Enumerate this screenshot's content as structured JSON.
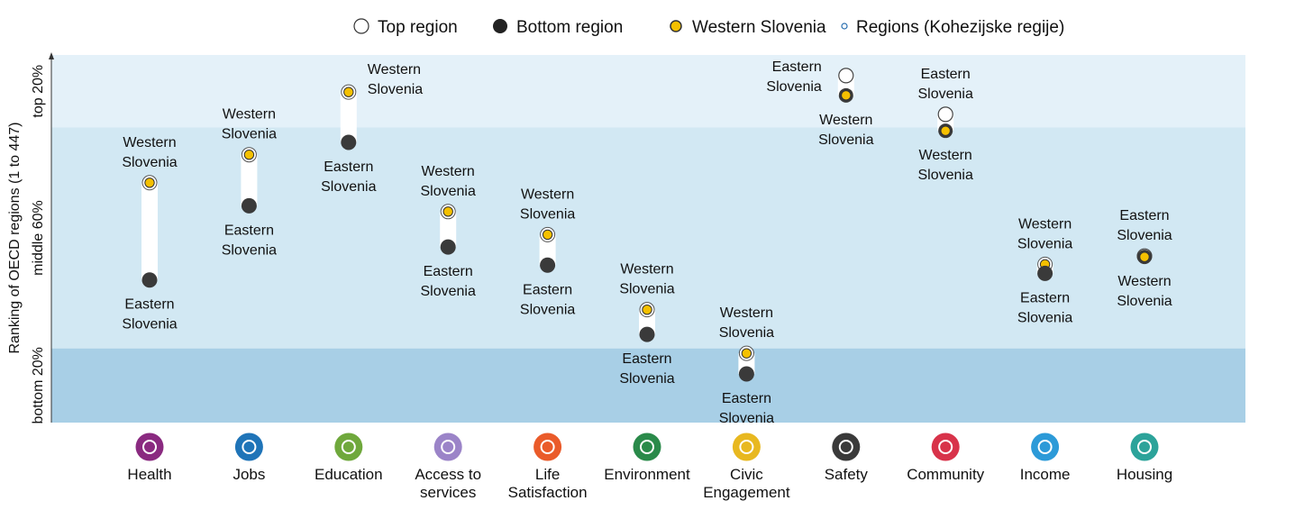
{
  "chart_data": {
    "type": "dot-range",
    "ylabel": "Ranking of OECD regions (1 to 447)",
    "bands": [
      {
        "label": "top 20%",
        "from": 1,
        "to": 89,
        "color": "#e4f1f9"
      },
      {
        "label": "middle 60%",
        "from": 89,
        "to": 357,
        "color": "#d2e8f3"
      },
      {
        "label": "bottom 20%",
        "from": 357,
        "to": 447,
        "color": "#a8cfe6"
      }
    ],
    "ylim": [
      1,
      447
    ],
    "legend": [
      {
        "key": "top",
        "label": "Top region"
      },
      {
        "key": "bottom",
        "label": "Bottom region"
      },
      {
        "key": "western",
        "label": "Western Slovenia"
      },
      {
        "key": "regions",
        "label": "Regions (Kohezijske regije)"
      }
    ],
    "colors": {
      "top_fill": "#ffffff",
      "bottom_fill": "#3a3a3a",
      "western_fill": "#f5c000",
      "connector": "#ffffff"
    },
    "categories": [
      {
        "name": "Health",
        "line1": "Health",
        "line2": "",
        "icon": "health-icon",
        "color": "#8a2a80",
        "top": {
          "label1": "Western",
          "label2": "Slovenia",
          "rank": 156,
          "western": true,
          "label_pos": "above"
        },
        "bottom": {
          "label1": "Eastern",
          "label2": "Slovenia",
          "rank": 274,
          "western": false,
          "label_pos": "below"
        }
      },
      {
        "name": "Jobs",
        "line1": "Jobs",
        "line2": "",
        "icon": "jobs-icon",
        "color": "#1f74b8",
        "top": {
          "label1": "Western",
          "label2": "Slovenia",
          "rank": 122,
          "western": true,
          "label_pos": "above"
        },
        "bottom": {
          "label1": "Eastern",
          "label2": "Slovenia",
          "rank": 184,
          "western": false,
          "label_pos": "below"
        }
      },
      {
        "name": "Education",
        "line1": "Education",
        "line2": "",
        "icon": "education-icon",
        "color": "#6fa83c",
        "top": {
          "label1": "Western",
          "label2": "Slovenia",
          "rank": 46,
          "western": true,
          "label_pos": "right"
        },
        "bottom": {
          "label1": "Eastern",
          "label2": "Slovenia",
          "rank": 107,
          "western": false,
          "label_pos": "below"
        }
      },
      {
        "name": "Access to services",
        "line1": "Access to",
        "line2": "services",
        "icon": "access-to-services-icon",
        "color": "#9b84c8",
        "top": {
          "label1": "Western",
          "label2": "Slovenia",
          "rank": 191,
          "western": true,
          "label_pos": "above"
        },
        "bottom": {
          "label1": "Eastern",
          "label2": "Slovenia",
          "rank": 234,
          "western": false,
          "label_pos": "below"
        }
      },
      {
        "name": "Life Satisfaction",
        "line1": "Life",
        "line2": "Satisfaction",
        "icon": "life-satisfaction-icon",
        "color": "#ea5b2a",
        "top": {
          "label1": "Western",
          "label2": "Slovenia",
          "rank": 219,
          "western": true,
          "label_pos": "above"
        },
        "bottom": {
          "label1": "Eastern",
          "label2": "Slovenia",
          "rank": 256,
          "western": false,
          "label_pos": "below"
        }
      },
      {
        "name": "Environment",
        "line1": "Environment",
        "line2": "",
        "icon": "environment-icon",
        "color": "#2a8a4a",
        "top": {
          "label1": "Western",
          "label2": "Slovenia",
          "rank": 310,
          "western": true,
          "label_pos": "above"
        },
        "bottom": {
          "label1": "Eastern",
          "label2": "Slovenia",
          "rank": 340,
          "western": false,
          "label_pos": "below"
        }
      },
      {
        "name": "Civic Engagement",
        "line1": "Civic",
        "line2": "Engagement",
        "icon": "civic-engagement-icon",
        "color": "#e8b820",
        "top": {
          "label1": "Western",
          "label2": "Slovenia",
          "rank": 363,
          "western": true,
          "label_pos": "above"
        },
        "bottom": {
          "label1": "Eastern",
          "label2": "Slovenia",
          "rank": 388,
          "western": false,
          "label_pos": "below"
        }
      },
      {
        "name": "Safety",
        "line1": "Safety",
        "line2": "",
        "icon": "safety-icon",
        "color": "#3a3a3a",
        "top": {
          "label1": "Eastern",
          "label2": "Slovenia",
          "rank": 26,
          "western": false,
          "label_pos": "left"
        },
        "bottom": {
          "label1": "Western",
          "label2": "Slovenia",
          "rank": 50,
          "western": true,
          "label_pos": "below"
        }
      },
      {
        "name": "Community",
        "line1": "Community",
        "line2": "",
        "icon": "community-icon",
        "color": "#d8334a",
        "top": {
          "label1": "Eastern",
          "label2": "Slovenia",
          "rank": 73,
          "western": false,
          "label_pos": "above"
        },
        "bottom": {
          "label1": "Western",
          "label2": "Slovenia",
          "rank": 93,
          "western": true,
          "label_pos": "below"
        }
      },
      {
        "name": "Income",
        "line1": "Income",
        "line2": "",
        "icon": "income-icon",
        "color": "#2c9ad8",
        "top": {
          "label1": "Western",
          "label2": "Slovenia",
          "rank": 255,
          "western": true,
          "label_pos": "above"
        },
        "bottom": {
          "label1": "Eastern",
          "label2": "Slovenia",
          "rank": 266,
          "western": false,
          "label_pos": "below"
        }
      },
      {
        "name": "Housing",
        "line1": "Housing",
        "line2": "",
        "icon": "housing-icon",
        "color": "#2ca39a",
        "top": {
          "label1": "Eastern",
          "label2": "Slovenia",
          "rank": 245,
          "western": false,
          "label_pos": "above"
        },
        "bottom": {
          "label1": "Western",
          "label2": "Slovenia",
          "rank": 246,
          "western": true,
          "label_pos": "below"
        }
      }
    ]
  }
}
